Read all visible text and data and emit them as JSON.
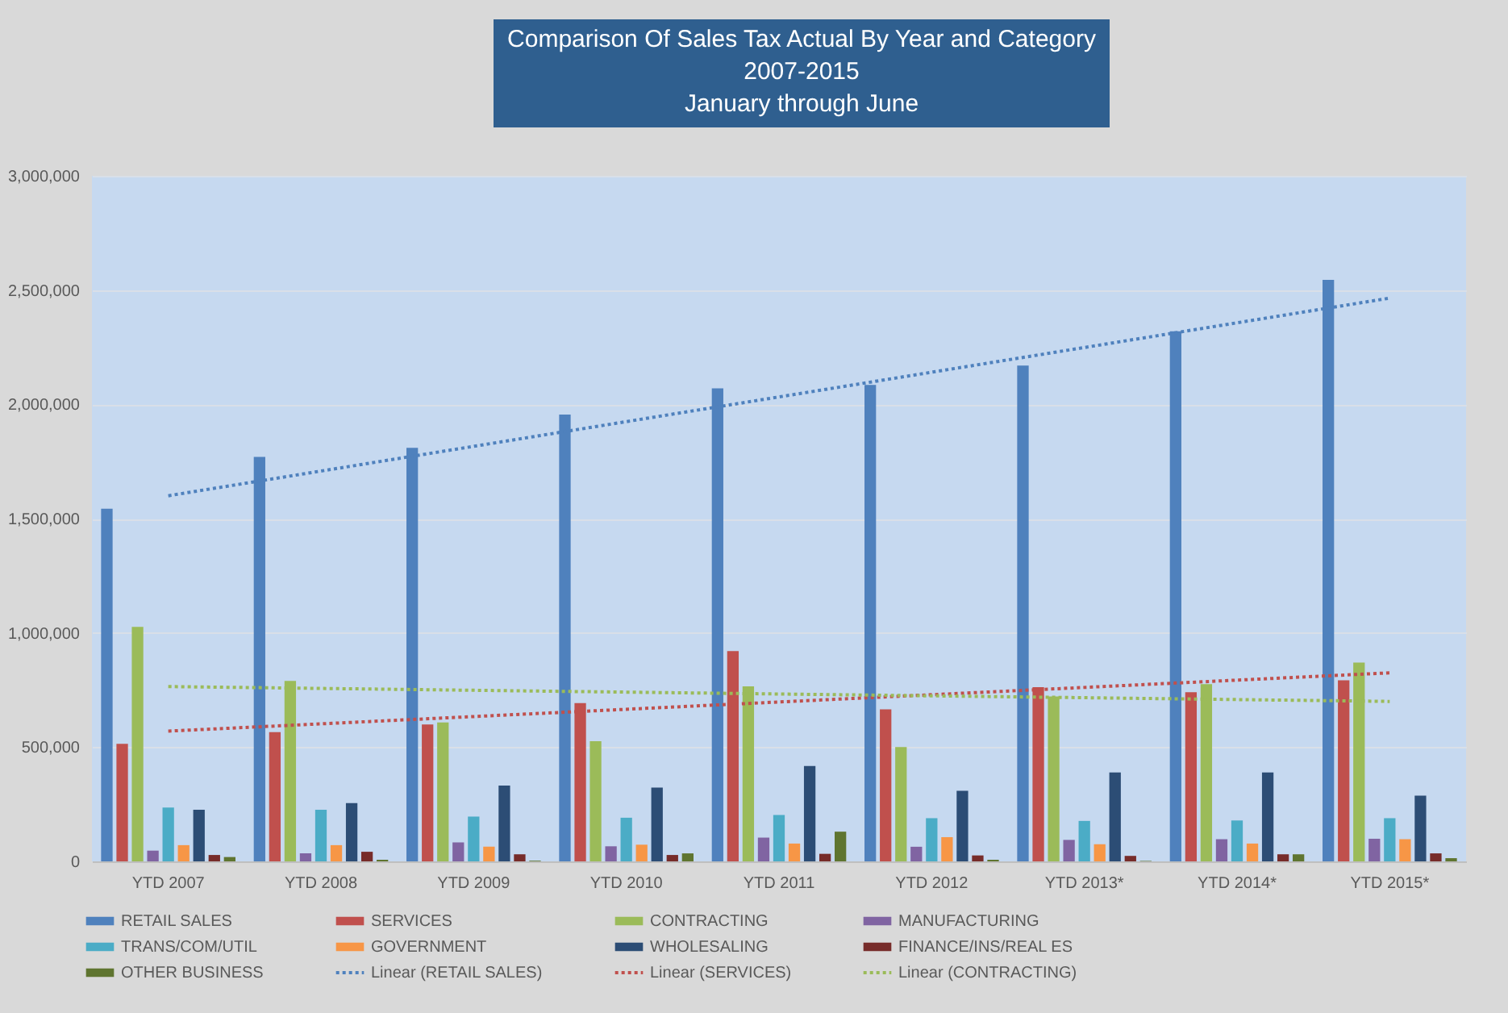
{
  "chart_data": {
    "type": "bar",
    "title": "Comparison Of Sales Tax Actual By Year and Category",
    "subtitle": "2007-2015\nJanuary through June",
    "categories": [
      "YTD 2007",
      "YTD 2008",
      "YTD 2009",
      "YTD 2010",
      "YTD 2011",
      "YTD 2012",
      "YTD 2013*",
      "YTD 2014*",
      "YTD 2015*"
    ],
    "ylim": [
      0,
      3000000
    ],
    "yticks": [
      0,
      {
        "value": 500000,
        "label": "500,000"
      },
      {
        "value": 1000000,
        "label": "1,000,000"
      },
      {
        "value": 1500000,
        "label": "1,500,000"
      },
      {
        "value": 2000000,
        "label": "2,000,000"
      },
      {
        "value": 2500000,
        "label": "2,500,000"
      },
      {
        "value": 3000000,
        "label": "3,000,000"
      }
    ],
    "grid": "y",
    "legend": "bottom",
    "series": [
      {
        "name": "RETAIL SALES",
        "color": "#4f81bd",
        "values": [
          1543000,
          1770000,
          1810000,
          1955000,
          2070000,
          2085000,
          2170000,
          2320000,
          2545000
        ]
      },
      {
        "name": "SERVICES",
        "color": "#c0504d",
        "values": [
          514000,
          566000,
          599000,
          693000,
          920000,
          665000,
          762000,
          740000,
          792000
        ]
      },
      {
        "name": "CONTRACTING",
        "color": "#9bbb59",
        "values": [
          1026000,
          790000,
          608000,
          526000,
          766000,
          500000,
          722000,
          776000,
          870000
        ]
      },
      {
        "name": "MANUFACTURING",
        "color": "#8064a2",
        "values": [
          47000,
          35000,
          83000,
          66000,
          104000,
          64000,
          94000,
          97000,
          99000
        ]
      },
      {
        "name": "TRANS/COM/UTIL",
        "color": "#4bacc6",
        "values": [
          236000,
          226000,
          196000,
          191000,
          203000,
          189000,
          177000,
          179000,
          189000
        ]
      },
      {
        "name": "GOVERNMENT",
        "color": "#f79646",
        "values": [
          71000,
          71000,
          64000,
          73000,
          78000,
          106000,
          75000,
          78000,
          97000
        ]
      },
      {
        "name": "WHOLESALING",
        "color": "#2c4d75",
        "values": [
          226000,
          255000,
          332000,
          323000,
          417000,
          309000,
          389000,
          389000,
          288000
        ]
      },
      {
        "name": "FINANCE/INS/REAL ES",
        "color": "#772c2a",
        "values": [
          28000,
          42000,
          31000,
          28000,
          33000,
          26000,
          24000,
          31000,
          35000
        ]
      },
      {
        "name": "OTHER BUSINESS",
        "color": "#5f7530",
        "values": [
          19000,
          7000,
          3000,
          35000,
          130000,
          7000,
          2000,
          31000,
          14000
        ]
      },
      {
        "name": "Linear (RETAIL SALES)",
        "type": "line",
        "line_style": "dotted",
        "color": "#4f81bd",
        "x": [
          "YTD 2007",
          "YTD 2015*"
        ],
        "values": [
          1600000,
          2465000
        ]
      },
      {
        "name": "Linear (SERVICES)",
        "type": "line",
        "line_style": "dotted",
        "color": "#c0504d",
        "x": [
          "YTD 2007",
          "YTD 2015*"
        ],
        "values": [
          570000,
          825000
        ]
      },
      {
        "name": "Linear (CONTRACTING)",
        "type": "line",
        "line_style": "dotted",
        "color": "#9bbb59",
        "x": [
          "YTD 2007",
          "YTD 2015*"
        ],
        "values": [
          765000,
          700000
        ]
      }
    ]
  }
}
